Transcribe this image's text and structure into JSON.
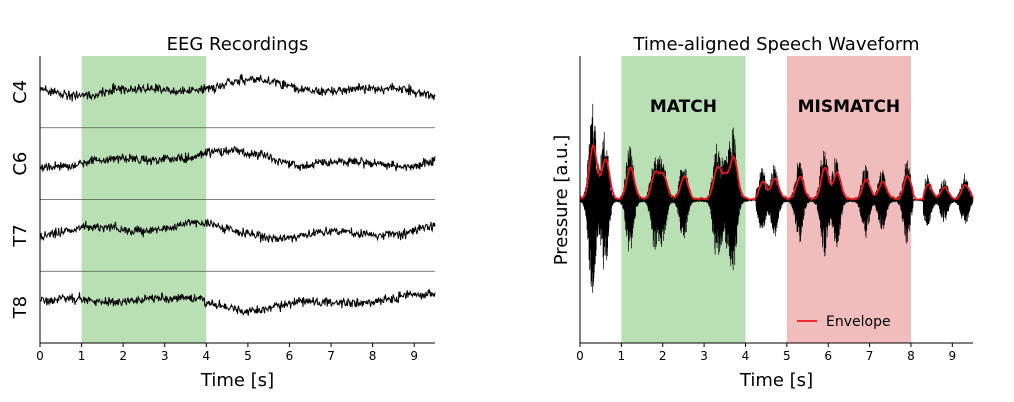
{
  "chart_data": [
    {
      "type": "line",
      "title": "EEG Recordings",
      "xlabel": "Time [s]",
      "ylabel": "",
      "xlim": [
        0,
        9.5
      ],
      "xticks": [
        0,
        1,
        2,
        3,
        4,
        5,
        6,
        7,
        8,
        9
      ],
      "channels": [
        "C4",
        "C6",
        "T7",
        "T8"
      ],
      "highlight": {
        "start": 1,
        "end": 4,
        "color": "#b9e0b4"
      },
      "line_color": "#000000",
      "grid": false
    },
    {
      "type": "line",
      "title": "Time-aligned Speech Waveform",
      "xlabel": "Time [s]",
      "ylabel": "Pressure [a.u.]",
      "xlim": [
        0,
        9.5
      ],
      "xticks": [
        0,
        1,
        2,
        3,
        4,
        5,
        6,
        7,
        8,
        9
      ],
      "regions": [
        {
          "label": "MATCH",
          "start": 1,
          "end": 4,
          "color": "#b9e0b4"
        },
        {
          "label": "MISMATCH",
          "start": 5,
          "end": 8,
          "color": "#f1bcbc"
        }
      ],
      "series": [
        {
          "name": "Envelope",
          "color": "#e8171e"
        }
      ],
      "waveform_color": "#000000",
      "legend": "bottom-right",
      "grid": false
    }
  ]
}
